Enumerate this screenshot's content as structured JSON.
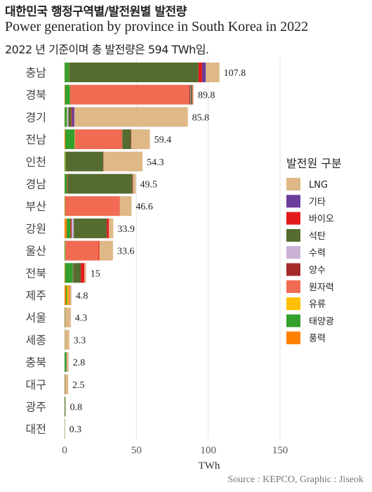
{
  "header": {
    "title": "대한민국 행정구역별/발전원별 발전량",
    "subtitle": "Power generation by province in South Korea in 2022",
    "caption": "2022 년 기준이며 총 발전량은 594 TWh임."
  },
  "footer": {
    "source": "Source : KEPCO, Graphic : Jiseok"
  },
  "chart_data": {
    "type": "bar",
    "orientation": "horizontal",
    "stacked": true,
    "xlabel": "TWh",
    "xlim": [
      0,
      150
    ],
    "xticks": [
      0,
      50,
      100,
      150
    ],
    "grid": true,
    "legend_title": "발전원 구분",
    "legend_position": "right",
    "categories": [
      "충남",
      "경북",
      "경기",
      "전남",
      "인천",
      "경남",
      "부산",
      "강원",
      "울산",
      "전북",
      "제주",
      "서울",
      "세종",
      "충북",
      "대구",
      "광주",
      "대전"
    ],
    "totals": [
      "107.8",
      "89.8",
      "85.8",
      "59.4",
      "54.3",
      "49.5",
      "46.6",
      "33.9",
      "33.6",
      "15",
      "4.8",
      "4.3",
      "3.3",
      "2.8",
      "2.5",
      "0.8",
      "0.3"
    ],
    "stack_order": [
      "풍력",
      "태양광",
      "유류",
      "원자력",
      "양수",
      "수력",
      "석탄",
      "바이오",
      "기타",
      "LNG"
    ],
    "legend_order": [
      "LNG",
      "기타",
      "바이오",
      "석탄",
      "수력",
      "양수",
      "원자력",
      "유류",
      "태양광",
      "풍력"
    ],
    "colors": {
      "LNG": "#dfb887",
      "기타": "#6a3d9a",
      "바이오": "#e31a1c",
      "석탄": "#556b2f",
      "수력": "#cab2d6",
      "양수": "#a52a2a",
      "원자력": "#f16b52",
      "유류": "#ffc000",
      "태양광": "#33a02c",
      "풍력": "#ff7f00"
    },
    "series": [
      {
        "name": "풍력",
        "values": [
          0.1,
          0.3,
          0.1,
          0.5,
          0.1,
          0.1,
          0.1,
          1.5,
          0.1,
          0.3,
          0.9,
          0,
          0,
          0,
          0,
          0,
          0
        ]
      },
      {
        "name": "태양광",
        "values": [
          3.0,
          3.5,
          1.5,
          6.5,
          0.6,
          1.6,
          0.2,
          2.5,
          0.5,
          5.5,
          0.8,
          0.2,
          0.1,
          1.2,
          0.2,
          0.2,
          0.1
        ]
      },
      {
        "name": "유류",
        "values": [
          0.1,
          0,
          0.1,
          0.2,
          0.2,
          0.1,
          0.1,
          0.1,
          0.1,
          0,
          1.2,
          0,
          0,
          0,
          0,
          0,
          0
        ]
      },
      {
        "name": "원자력",
        "values": [
          0,
          83.0,
          0,
          33.0,
          0,
          0,
          37.8,
          0,
          23.0,
          0,
          0,
          0,
          0,
          0,
          0,
          0,
          0
        ]
      },
      {
        "name": "양수",
        "values": [
          0,
          0.7,
          0,
          0,
          0,
          0.4,
          0,
          0.8,
          0,
          0.3,
          0,
          0,
          0,
          0,
          0,
          0,
          0
        ]
      },
      {
        "name": "수력",
        "values": [
          0,
          0.3,
          1.0,
          0,
          0,
          0.1,
          0,
          1.5,
          0,
          0.2,
          0,
          0,
          0,
          0.2,
          0,
          0,
          0
        ]
      },
      {
        "name": "석탄",
        "values": [
          90.0,
          1.0,
          2.0,
          6.0,
          26.0,
          45.0,
          0,
          23.0,
          0,
          5.0,
          0,
          0,
          0,
          0,
          0,
          0.4,
          0
        ]
      },
      {
        "name": "바이오",
        "values": [
          2.5,
          0.3,
          0.5,
          0.3,
          0.1,
          0.3,
          0.2,
          1.5,
          0.5,
          2.5,
          0.4,
          0.1,
          0,
          0.1,
          0.1,
          0,
          0
        ]
      },
      {
        "name": "기타",
        "values": [
          2.6,
          0,
          1.6,
          0,
          0,
          0,
          0,
          0,
          0,
          0,
          0,
          0,
          0,
          0,
          0,
          0,
          0
        ]
      },
      {
        "name": "LNG",
        "values": [
          9.5,
          0.7,
          79.0,
          12.9,
          27.3,
          2.0,
          8.2,
          3.0,
          9.5,
          1.2,
          1.5,
          4.0,
          3.2,
          1.3,
          2.2,
          0.2,
          0.2
        ]
      }
    ]
  }
}
